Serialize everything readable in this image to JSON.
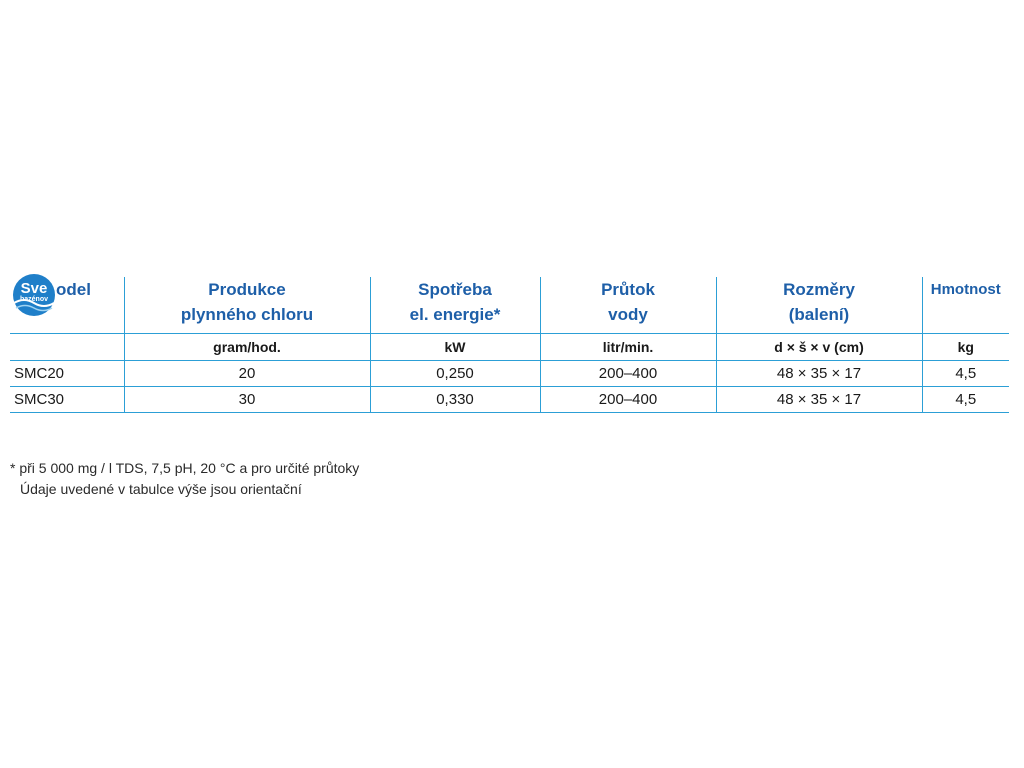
{
  "logo": {
    "main_text": "Sve",
    "sub_text": "bazénov",
    "icon": "svet-bazenov-logo"
  },
  "table": {
    "headers": {
      "model": "Model",
      "model_visible_suffix": "odel",
      "produkce": [
        "Produkce",
        "plynného chloru"
      ],
      "spotreba": [
        "Spotřeba",
        "el. energie*"
      ],
      "prutok": [
        "Průtok",
        "vody"
      ],
      "rozmery": [
        "Rozměry",
        "(balení)"
      ],
      "hmotnost": "Hmotnost"
    },
    "units": {
      "model": "",
      "produkce": "gram/hod.",
      "spotreba": "kW",
      "prutok": "litr/min.",
      "rozmery": "d × š × v (cm)",
      "hmotnost": "kg"
    },
    "rows": [
      {
        "model": "SMC20",
        "produkce": "20",
        "spotreba": "0,250",
        "prutok": "200–400",
        "rozmery": "48 × 35 × 17",
        "hmotnost": "4,5"
      },
      {
        "model": "SMC30",
        "produkce": "30",
        "spotreba": "0,330",
        "prutok": "200–400",
        "rozmery": "48 × 35 × 17",
        "hmotnost": "4,5"
      }
    ]
  },
  "footnote": {
    "line1": "* při 5 000 mg / l TDS, 7,5 pH, 20 °C a pro určité průtoky",
    "line2": "Údaje uvedené v tabulce výše jsou orientační"
  },
  "colors": {
    "header_text": "#1e5fa8",
    "rule": "#2c9fd6",
    "logo_blue": "#1f7fc9"
  }
}
